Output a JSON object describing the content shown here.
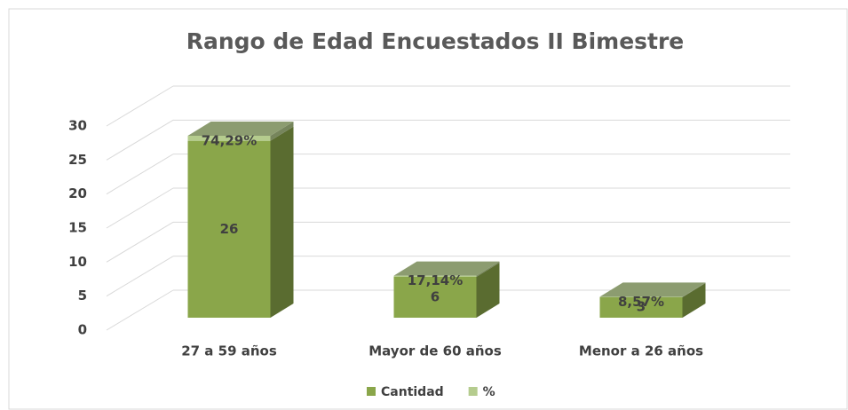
{
  "chart_data": {
    "type": "bar3d_stacked",
    "title": "Rango de Edad Encuestados II Bimestre",
    "categories": [
      "27 a 59 años",
      "Mayor de 60 años",
      "Menor a 26 años"
    ],
    "series": [
      {
        "name": "Cantidad",
        "color": "#8aa64a",
        "values": [
          26,
          6,
          3
        ]
      },
      {
        "name": "%",
        "color": "#b5cc8e",
        "values": [
          0.7429,
          0.1714,
          0.0857
        ],
        "value_labels": [
          "74,29%",
          "17,14%",
          "8,57%"
        ]
      }
    ],
    "ylim": [
      0,
      30
    ],
    "yticks": [
      0,
      5,
      10,
      15,
      20,
      25,
      30
    ],
    "grid": true,
    "legend": "bottom"
  }
}
